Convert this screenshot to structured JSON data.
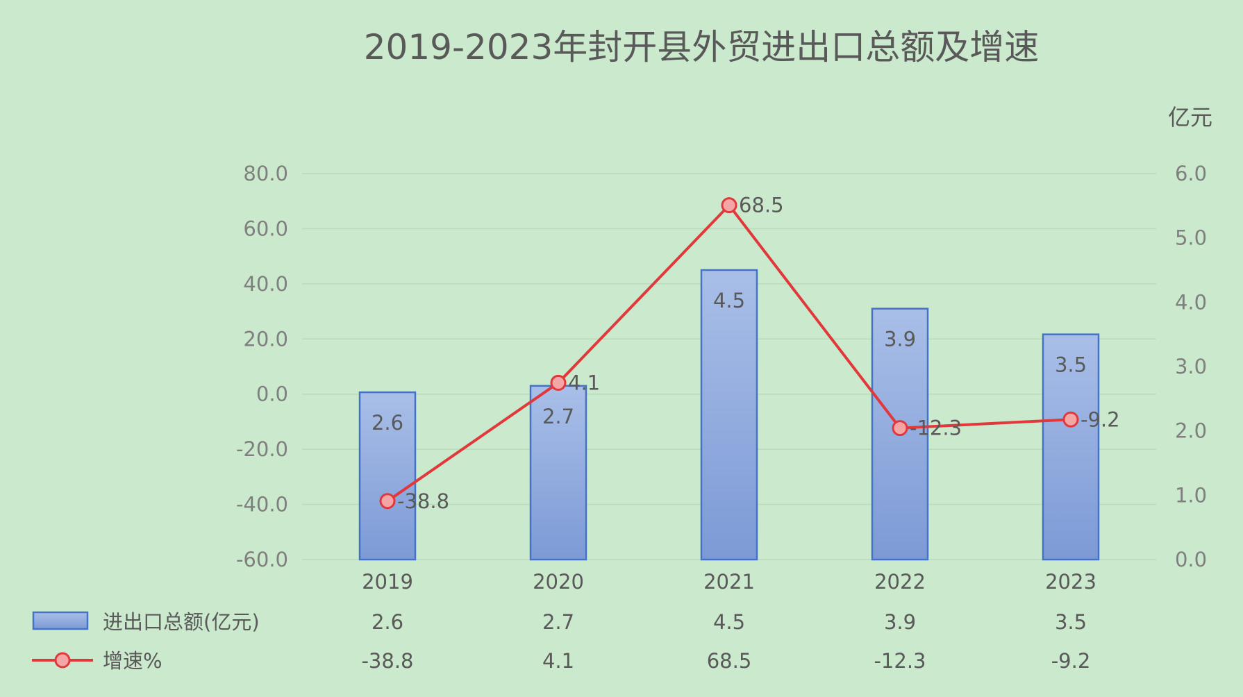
{
  "chart_data": {
    "type": "bar",
    "title": "2019-2023年封开县外贸进出口总额及增速",
    "right_axis_unit": "亿元",
    "categories": [
      "2019",
      "2020",
      "2021",
      "2022",
      "2023"
    ],
    "left_axis": {
      "min": -60,
      "max": 80,
      "step": 20,
      "ticks": [
        "80.0",
        "60.0",
        "40.0",
        "20.0",
        "0.0",
        "-20.0",
        "-40.0",
        "-60.0"
      ]
    },
    "right_axis": {
      "min": 0,
      "max": 6,
      "step": 1,
      "ticks": [
        "6.0",
        "5.0",
        "4.0",
        "3.0",
        "2.0",
        "1.0",
        "0.0"
      ]
    },
    "grid": true,
    "legend_placement": "bottom data table",
    "series": [
      {
        "name": "进出口总额(亿元)",
        "type": "bar",
        "axis": "right",
        "values": [
          2.6,
          2.7,
          4.5,
          3.9,
          3.5
        ],
        "labels": [
          "2.6",
          "2.7",
          "4.5",
          "3.9",
          "3.5"
        ],
        "color": "#8faadc"
      },
      {
        "name": "增速%",
        "type": "line",
        "axis": "left",
        "values": [
          -38.8,
          4.1,
          68.5,
          -12.3,
          -9.2
        ],
        "labels": [
          "-38.8",
          "4.1",
          "68.5",
          "-12.3",
          "-9.2"
        ],
        "color": "#e0383b"
      }
    ]
  }
}
